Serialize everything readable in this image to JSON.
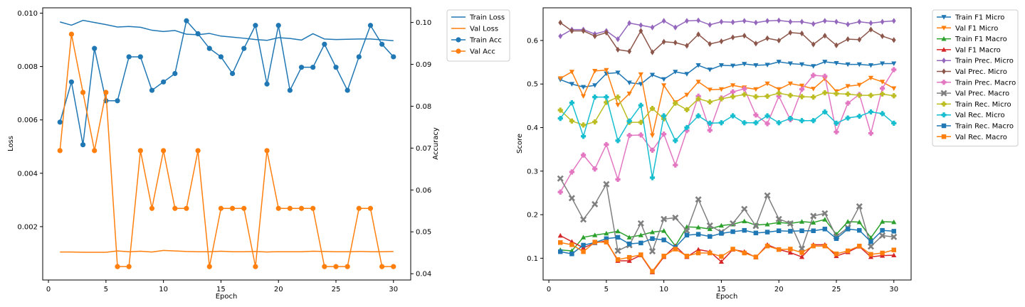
{
  "chart_data": [
    {
      "type": "line",
      "xlabel": "Epoch",
      "ylabel": "Loss",
      "y2label": "Accuracy",
      "xlim": [
        -0.5,
        31.5
      ],
      "ylim": [
        0.0,
        0.0102
      ],
      "y2lim": [
        0.0385,
        0.1035
      ],
      "xticks": [
        0,
        5,
        10,
        15,
        20,
        25,
        30
      ],
      "yticks": [
        0.002,
        0.004,
        0.006,
        0.008,
        0.01
      ],
      "yticklabels": [
        "0.002",
        "0.004",
        "0.006",
        "0.008",
        "0.010"
      ],
      "y2ticks": [
        0.04,
        0.05,
        0.06,
        0.07,
        0.08,
        0.09,
        0.1
      ],
      "y2ticklabels": [
        "0.04",
        "0.05",
        "0.06",
        "0.07",
        "0.08",
        "0.09",
        "0.10"
      ],
      "grid": false,
      "legend": "outside-upper-right",
      "x": [
        1,
        2,
        3,
        4,
        5,
        6,
        7,
        8,
        9,
        10,
        11,
        12,
        13,
        14,
        15,
        16,
        17,
        18,
        19,
        20,
        21,
        22,
        23,
        24,
        25,
        26,
        27,
        28,
        29,
        30
      ],
      "series": [
        {
          "name": "Train Loss",
          "axis": "left",
          "color": "#1f77b4",
          "marker": "none",
          "values": [
            0.00967,
            0.00955,
            0.00973,
            0.00965,
            0.00957,
            0.00948,
            0.0095,
            0.00947,
            0.00936,
            0.00931,
            0.00935,
            0.00921,
            0.00919,
            0.00924,
            0.00914,
            0.0091,
            0.00906,
            0.00901,
            0.00898,
            0.00908,
            0.00905,
            0.00899,
            0.00923,
            0.00903,
            0.00901,
            0.00902,
            0.00903,
            0.00903,
            0.009,
            0.00897
          ]
        },
        {
          "name": "Val Loss",
          "axis": "left",
          "color": "#ff7f0e",
          "marker": "none",
          "values": [
            0.00105,
            0.00105,
            0.00104,
            0.00104,
            0.00104,
            0.00109,
            0.00106,
            0.00108,
            0.00105,
            0.00111,
            0.00109,
            0.00107,
            0.00106,
            0.00106,
            0.00108,
            0.00106,
            0.00106,
            0.00107,
            0.00105,
            0.00106,
            0.00106,
            0.00106,
            0.00108,
            0.00107,
            0.00106,
            0.00106,
            0.00107,
            0.00106,
            0.00106,
            0.00107
          ]
        },
        {
          "name": "Train Acc",
          "axis": "right",
          "color": "#1f77b4",
          "marker": "circle",
          "values": [
            0.0762,
            0.0858,
            0.0708,
            0.0938,
            0.0813,
            0.0813,
            0.0918,
            0.0918,
            0.0838,
            0.0858,
            0.0878,
            0.1004,
            0.0973,
            0.0938,
            0.0918,
            0.0878,
            0.0938,
            0.0993,
            0.0853,
            0.0993,
            0.0838,
            0.0893,
            0.0893,
            0.0948,
            0.0893,
            0.0838,
            0.0918,
            0.0993,
            0.0948,
            0.0918
          ]
        },
        {
          "name": "Val Acc",
          "axis": "right",
          "color": "#ff7f0e",
          "marker": "circle",
          "values": [
            0.0694,
            0.0972,
            0.0833,
            0.0694,
            0.0833,
            0.0417,
            0.0417,
            0.0694,
            0.0556,
            0.0694,
            0.0556,
            0.0556,
            0.0694,
            0.0417,
            0.0556,
            0.0556,
            0.0556,
            0.0417,
            0.0694,
            0.0556,
            0.0556,
            0.0556,
            0.0556,
            0.0417,
            0.0417,
            0.0417,
            0.0556,
            0.0556,
            0.0417,
            0.0417
          ]
        }
      ]
    },
    {
      "type": "line",
      "xlabel": "Epoch",
      "ylabel": "Score",
      "xlim": [
        -0.5,
        31.5
      ],
      "ylim": [
        0.05,
        0.675
      ],
      "xticks": [
        0,
        5,
        10,
        15,
        20,
        25,
        30
      ],
      "yticks": [
        0.1,
        0.2,
        0.3,
        0.4,
        0.5,
        0.6
      ],
      "yticklabels": [
        "0.1",
        "0.2",
        "0.3",
        "0.4",
        "0.5",
        "0.6"
      ],
      "grid": false,
      "legend": "outside-upper-right",
      "x": [
        1,
        2,
        3,
        4,
        5,
        6,
        7,
        8,
        9,
        10,
        11,
        12,
        13,
        14,
        15,
        16,
        17,
        18,
        19,
        20,
        21,
        22,
        23,
        24,
        25,
        26,
        27,
        28,
        29,
        30
      ],
      "series": [
        {
          "name": "Train F1 Micro",
          "color": "#1f77b4",
          "marker": "triangle-down",
          "values": [
            0.51,
            0.5,
            0.493,
            0.497,
            0.524,
            0.526,
            0.503,
            0.5,
            0.521,
            0.511,
            0.528,
            0.523,
            0.543,
            0.533,
            0.543,
            0.542,
            0.546,
            0.543,
            0.544,
            0.551,
            0.547,
            0.545,
            0.541,
            0.551,
            0.548,
            0.545,
            0.545,
            0.543,
            0.547,
            0.547
          ]
        },
        {
          "name": "Val F1 Micro",
          "color": "#ff7f0e",
          "marker": "triangle-down",
          "values": [
            0.513,
            0.528,
            0.472,
            0.53,
            0.532,
            0.452,
            0.478,
            0.522,
            0.382,
            0.497,
            0.458,
            0.475,
            0.505,
            0.487,
            0.488,
            0.497,
            0.492,
            0.488,
            0.501,
            0.488,
            0.501,
            0.496,
            0.489,
            0.512,
            0.483,
            0.495,
            0.498,
            0.514,
            0.505,
            0.49
          ]
        },
        {
          "name": "Train F1 Macro",
          "color": "#2ca02c",
          "marker": "triangle-up",
          "values": [
            0.119,
            0.117,
            0.148,
            0.153,
            0.157,
            0.162,
            0.148,
            0.153,
            0.16,
            0.163,
            0.128,
            0.172,
            0.171,
            0.167,
            0.175,
            0.178,
            0.185,
            0.176,
            0.178,
            0.182,
            0.18,
            0.184,
            0.182,
            0.189,
            0.155,
            0.184,
            0.183,
            0.147,
            0.184,
            0.183
          ]
        },
        {
          "name": "Val F1 Macro",
          "color": "#d62728",
          "marker": "triangle-up",
          "values": [
            0.152,
            0.138,
            0.124,
            0.135,
            0.14,
            0.094,
            0.094,
            0.107,
            0.068,
            0.103,
            0.128,
            0.103,
            0.12,
            0.115,
            0.092,
            0.12,
            0.115,
            0.102,
            0.131,
            0.12,
            0.113,
            0.103,
            0.131,
            0.131,
            0.105,
            0.114,
            0.127,
            0.103,
            0.106,
            0.107
          ]
        },
        {
          "name": "Train Prec. Micro",
          "color": "#9467bd",
          "marker": "diamond",
          "values": [
            0.61,
            0.625,
            0.625,
            0.615,
            0.622,
            0.603,
            0.64,
            0.635,
            0.63,
            0.645,
            0.63,
            0.645,
            0.646,
            0.636,
            0.643,
            0.642,
            0.645,
            0.641,
            0.645,
            0.646,
            0.643,
            0.643,
            0.638,
            0.645,
            0.643,
            0.637,
            0.643,
            0.64,
            0.643,
            0.645
          ]
        },
        {
          "name": "Val Prec. Micro",
          "color": "#8c564b",
          "marker": "diamond",
          "values": [
            0.641,
            0.622,
            0.622,
            0.61,
            0.618,
            0.579,
            0.575,
            0.622,
            0.573,
            0.597,
            0.595,
            0.588,
            0.614,
            0.592,
            0.598,
            0.607,
            0.611,
            0.593,
            0.605,
            0.6,
            0.618,
            0.616,
            0.591,
            0.611,
            0.589,
            0.603,
            0.602,
            0.625,
            0.61,
            0.601
          ]
        },
        {
          "name": "Train Prec. Macro",
          "color": "#e377c2",
          "marker": "plus",
          "values": [
            0.252,
            0.298,
            0.337,
            0.305,
            0.361,
            0.281,
            0.382,
            0.383,
            0.348,
            0.385,
            0.314,
            0.393,
            0.472,
            0.394,
            0.468,
            0.482,
            0.489,
            0.429,
            0.409,
            0.472,
            0.418,
            0.488,
            0.52,
            0.518,
            0.39,
            0.456,
            0.476,
            0.387,
            0.49,
            0.533
          ]
        },
        {
          "name": "Val Prec. Macro",
          "color": "#7f7f7f",
          "marker": "x",
          "values": [
            0.283,
            0.238,
            0.189,
            0.224,
            0.27,
            0.117,
            0.13,
            0.18,
            0.116,
            0.19,
            0.193,
            0.163,
            0.235,
            0.175,
            0.16,
            0.18,
            0.213,
            0.174,
            0.244,
            0.19,
            0.18,
            0.122,
            0.197,
            0.203,
            0.15,
            0.17,
            0.219,
            0.127,
            0.152,
            0.149
          ]
        },
        {
          "name": "Train Rec. Micro",
          "color": "#bcbd22",
          "marker": "plus",
          "values": [
            0.44,
            0.415,
            0.406,
            0.413,
            0.458,
            0.47,
            0.412,
            0.412,
            0.444,
            0.42,
            0.456,
            0.441,
            0.466,
            0.459,
            0.466,
            0.471,
            0.476,
            0.471,
            0.472,
            0.479,
            0.474,
            0.471,
            0.47,
            0.48,
            0.478,
            0.477,
            0.474,
            0.474,
            0.477,
            0.473
          ]
        },
        {
          "name": "Val Rec. Micro",
          "color": "#17becf",
          "marker": "plus",
          "values": [
            0.421,
            0.457,
            0.38,
            0.47,
            0.47,
            0.37,
            0.415,
            0.451,
            0.285,
            0.427,
            0.37,
            0.4,
            0.427,
            0.41,
            0.411,
            0.427,
            0.411,
            0.411,
            0.427,
            0.411,
            0.421,
            0.416,
            0.416,
            0.436,
            0.41,
            0.422,
            0.426,
            0.436,
            0.432,
            0.41
          ]
        },
        {
          "name": "Train Rec. Macro",
          "color": "#1f77b4",
          "marker": "square",
          "values": [
            0.115,
            0.11,
            0.13,
            0.136,
            0.145,
            0.148,
            0.133,
            0.135,
            0.145,
            0.142,
            0.125,
            0.153,
            0.155,
            0.15,
            0.157,
            0.161,
            0.164,
            0.158,
            0.16,
            0.163,
            0.162,
            0.163,
            0.163,
            0.167,
            0.145,
            0.167,
            0.164,
            0.138,
            0.164,
            0.162
          ]
        },
        {
          "name": "Val Rec. Macro",
          "color": "#ff7f0e",
          "marker": "square",
          "values": [
            0.136,
            0.131,
            0.115,
            0.137,
            0.137,
            0.097,
            0.102,
            0.108,
            0.07,
            0.105,
            0.121,
            0.105,
            0.112,
            0.112,
            0.104,
            0.121,
            0.112,
            0.103,
            0.128,
            0.12,
            0.121,
            0.113,
            0.128,
            0.128,
            0.11,
            0.117,
            0.128,
            0.109,
            0.112,
            0.119
          ]
        }
      ]
    }
  ]
}
